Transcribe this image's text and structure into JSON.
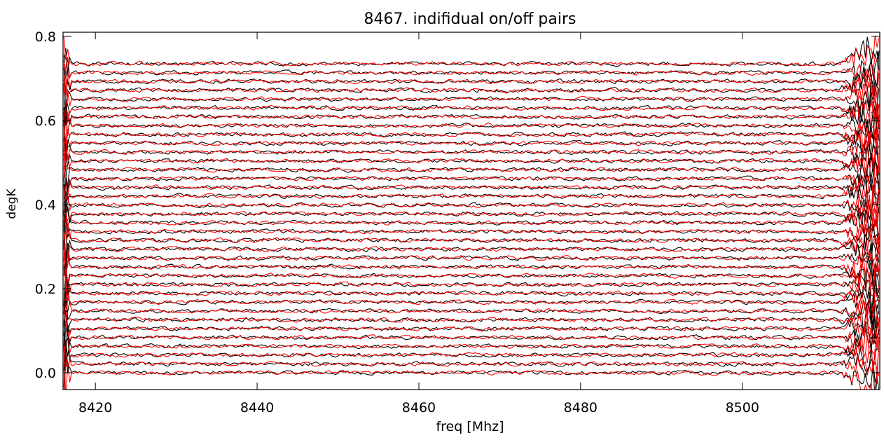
{
  "chart_data": {
    "type": "line",
    "title": "8467. indifidual on/off pairs",
    "xlabel": "freq [Mhz]",
    "ylabel": "degK",
    "xlim": [
      8416,
      8517
    ],
    "ylim": [
      -0.04,
      0.81
    ],
    "x_ticks": [
      "8420",
      "8440",
      "8460",
      "8480",
      "8500"
    ],
    "x_tick_values": [
      8420,
      8440,
      8460,
      8480,
      8500
    ],
    "y_ticks": [
      "0.0",
      "0.2",
      "0.4",
      "0.6",
      "0.8"
    ],
    "y_tick_values": [
      0.0,
      0.2,
      0.4,
      0.6,
      0.8
    ],
    "grid": false,
    "legend": "none",
    "n_pairs": 36,
    "baseline_first": 0.0,
    "baseline_spacing": 0.021,
    "noise_amplitude": 0.005,
    "series": [
      {
        "color": "#000000"
      },
      {
        "color": "#ff0000"
      }
    ]
  }
}
